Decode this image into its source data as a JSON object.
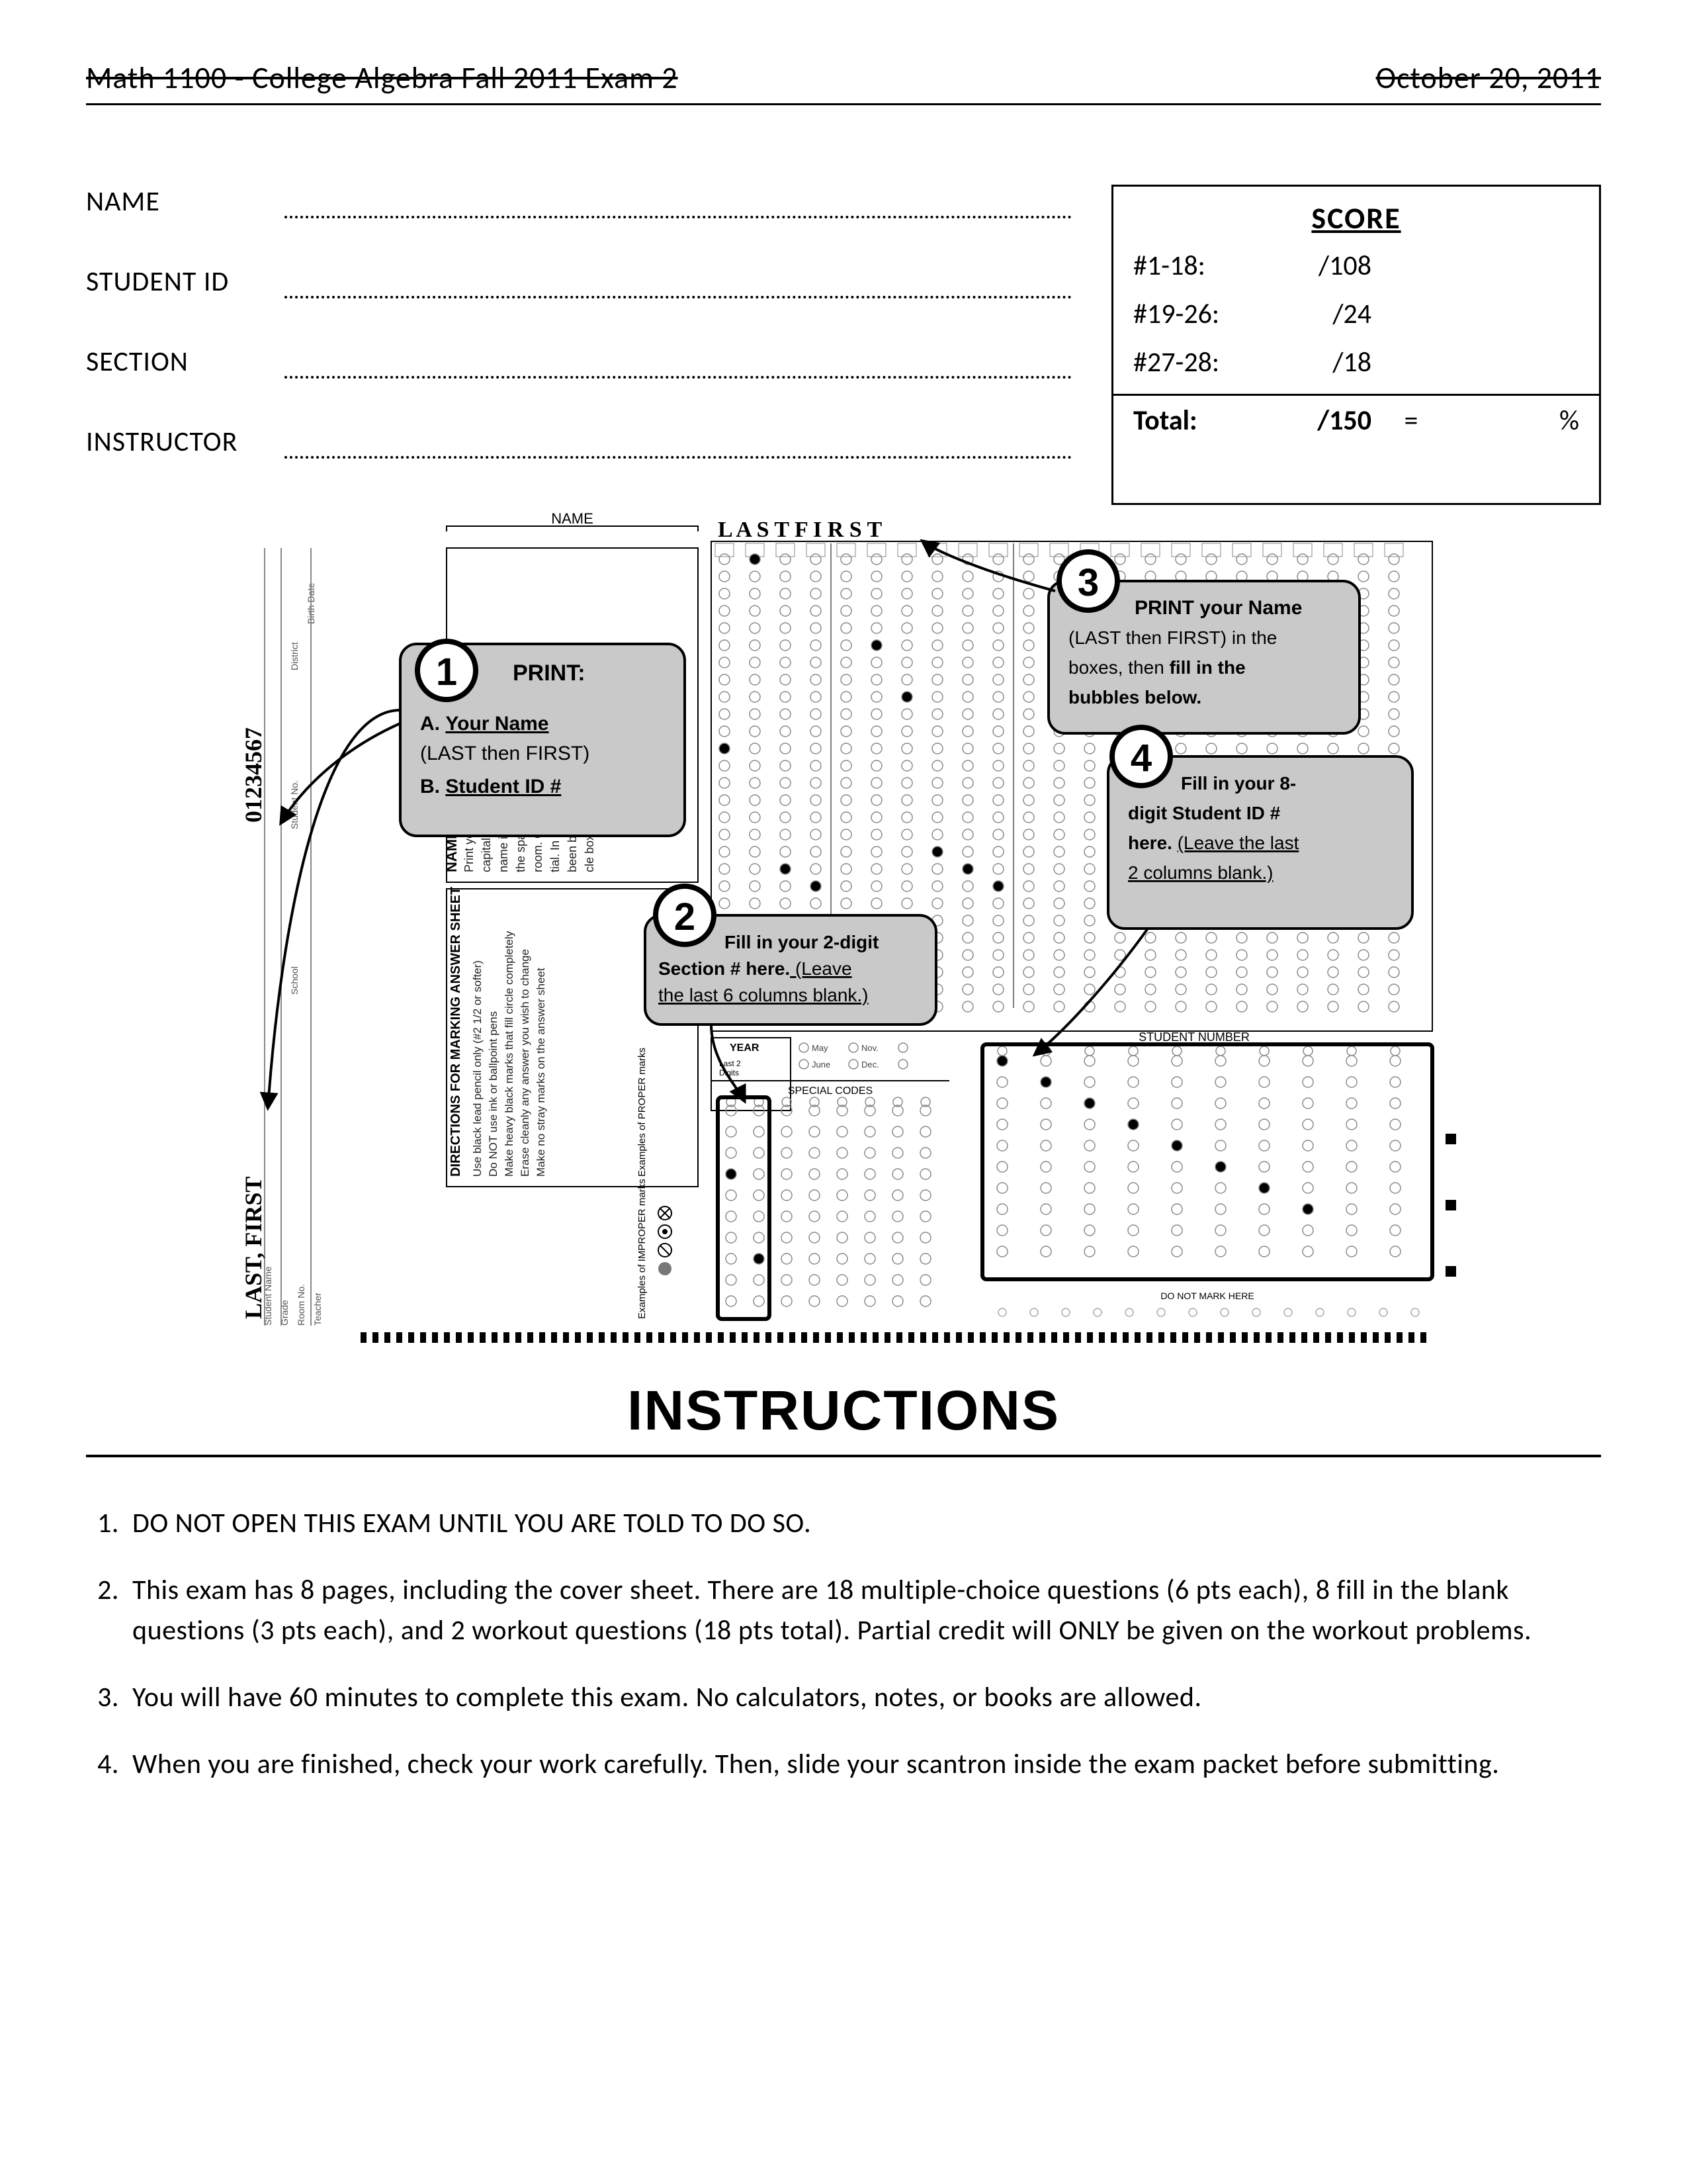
{
  "header": {
    "left": "Math 1100 - College Algebra Fall 2011 Exam 2",
    "right": "October 20, 2011"
  },
  "fields": {
    "name": "NAME",
    "sid": "STUDENT ID",
    "section": "SECTION",
    "instructor": "INSTRUCTOR"
  },
  "score": {
    "title": "SCORE",
    "rows": [
      {
        "label": "#1-18:",
        "value": "/108"
      },
      {
        "label": "#19-26:",
        "value": "/24"
      },
      {
        "label": "#27-28:",
        "value": "/18"
      }
    ],
    "total_label": "Total:",
    "total_value": "/150",
    "eq": "=",
    "pct": "%"
  },
  "scantron": {
    "name_label": "NAME",
    "handwritten_name_top": "L A S T    F I R S T",
    "handwritten_name_side": "LAST, FIRST",
    "student_no_side": "01234567",
    "side_labels": [
      "Student Name",
      "Grade",
      "Room No.",
      "Teacher",
      "School",
      "Student No.",
      "District",
      "Birth Date"
    ],
    "name_grid_title": "NAME GRID",
    "name_grid_text": "Print your name in capital letters. Print your name in print as much of the spaces if there is sufficient room. Omit your middle initial. In each box that has been blacken the blank circle boxes.",
    "directions_title": "DIRECTIONS FOR MARKING ANSWER SHEET",
    "directions_lines": [
      "Use black lead pencil only (#2 1/2 or softer)",
      "Do NOT use ink or ballpoint pens",
      "Make heavy black marks that fill circle completely",
      "Erase cleanly any answer you wish to change",
      "Make no stray marks on the answer sheet"
    ],
    "proper_label": "Examples of PROPER marks",
    "improper_label": "Examples of IMPROPER marks",
    "year_label": "YEAR",
    "year_sub": "Last 2\nDigits",
    "months": [
      "May",
      "June",
      "Nov.",
      "Dec."
    ],
    "special_codes": "SPECIAL CODES",
    "student_number": "STUDENT NUMBER",
    "do_not_mark": "DO NOT MARK HERE",
    "callouts": {
      "c1": {
        "num": "1",
        "title": "PRINT:",
        "a_label": "A.",
        "a_text": "Your Name",
        "a_sub": "(LAST then FIRST)",
        "b_label": "B.",
        "b_text": "Student ID #"
      },
      "c2": {
        "num": "2",
        "text_a": "Fill in your 2-digit ",
        "text_b": "Section # here.",
        "text_c": "  (Leave ",
        "text_d": "the last 6 columns blank.)"
      },
      "c3": {
        "num": "3",
        "title": "PRINT your Name",
        "line1": "(LAST then FIRST) in the",
        "line2a": "boxes, then ",
        "line2b": "fill in the",
        "line3": "bubbles below."
      },
      "c4": {
        "num": "4",
        "l1": "Fill in your 8-",
        "l2": "digit Student ID #",
        "l3a": "here.  ",
        "l3b": "(Leave the last",
        "l4": "2 columns blank.)"
      }
    },
    "colors": {
      "bubble": "#8a8a8a",
      "fill": "#000000",
      "callout_fill": "#c9c9c9",
      "callout_stroke": "#000000",
      "grid_border": "#000000"
    }
  },
  "instructions": {
    "heading": "INSTRUCTIONS",
    "items": [
      "DO NOT OPEN THIS EXAM UNTIL YOU ARE TOLD TO DO SO.",
      "This exam has 8 pages, including the cover sheet.  There are 18 multiple-choice questions (6 pts each), 8 fill in the blank questions (3 pts each), and 2 workout questions (18 pts total).  Partial credit will ONLY be given on the workout problems.",
      "You will have 60 minutes to complete this exam.  No calculators, notes, or books are allowed.",
      "When you are finished, check your work carefully.  Then, slide your scantron inside the exam packet before submitting."
    ]
  }
}
